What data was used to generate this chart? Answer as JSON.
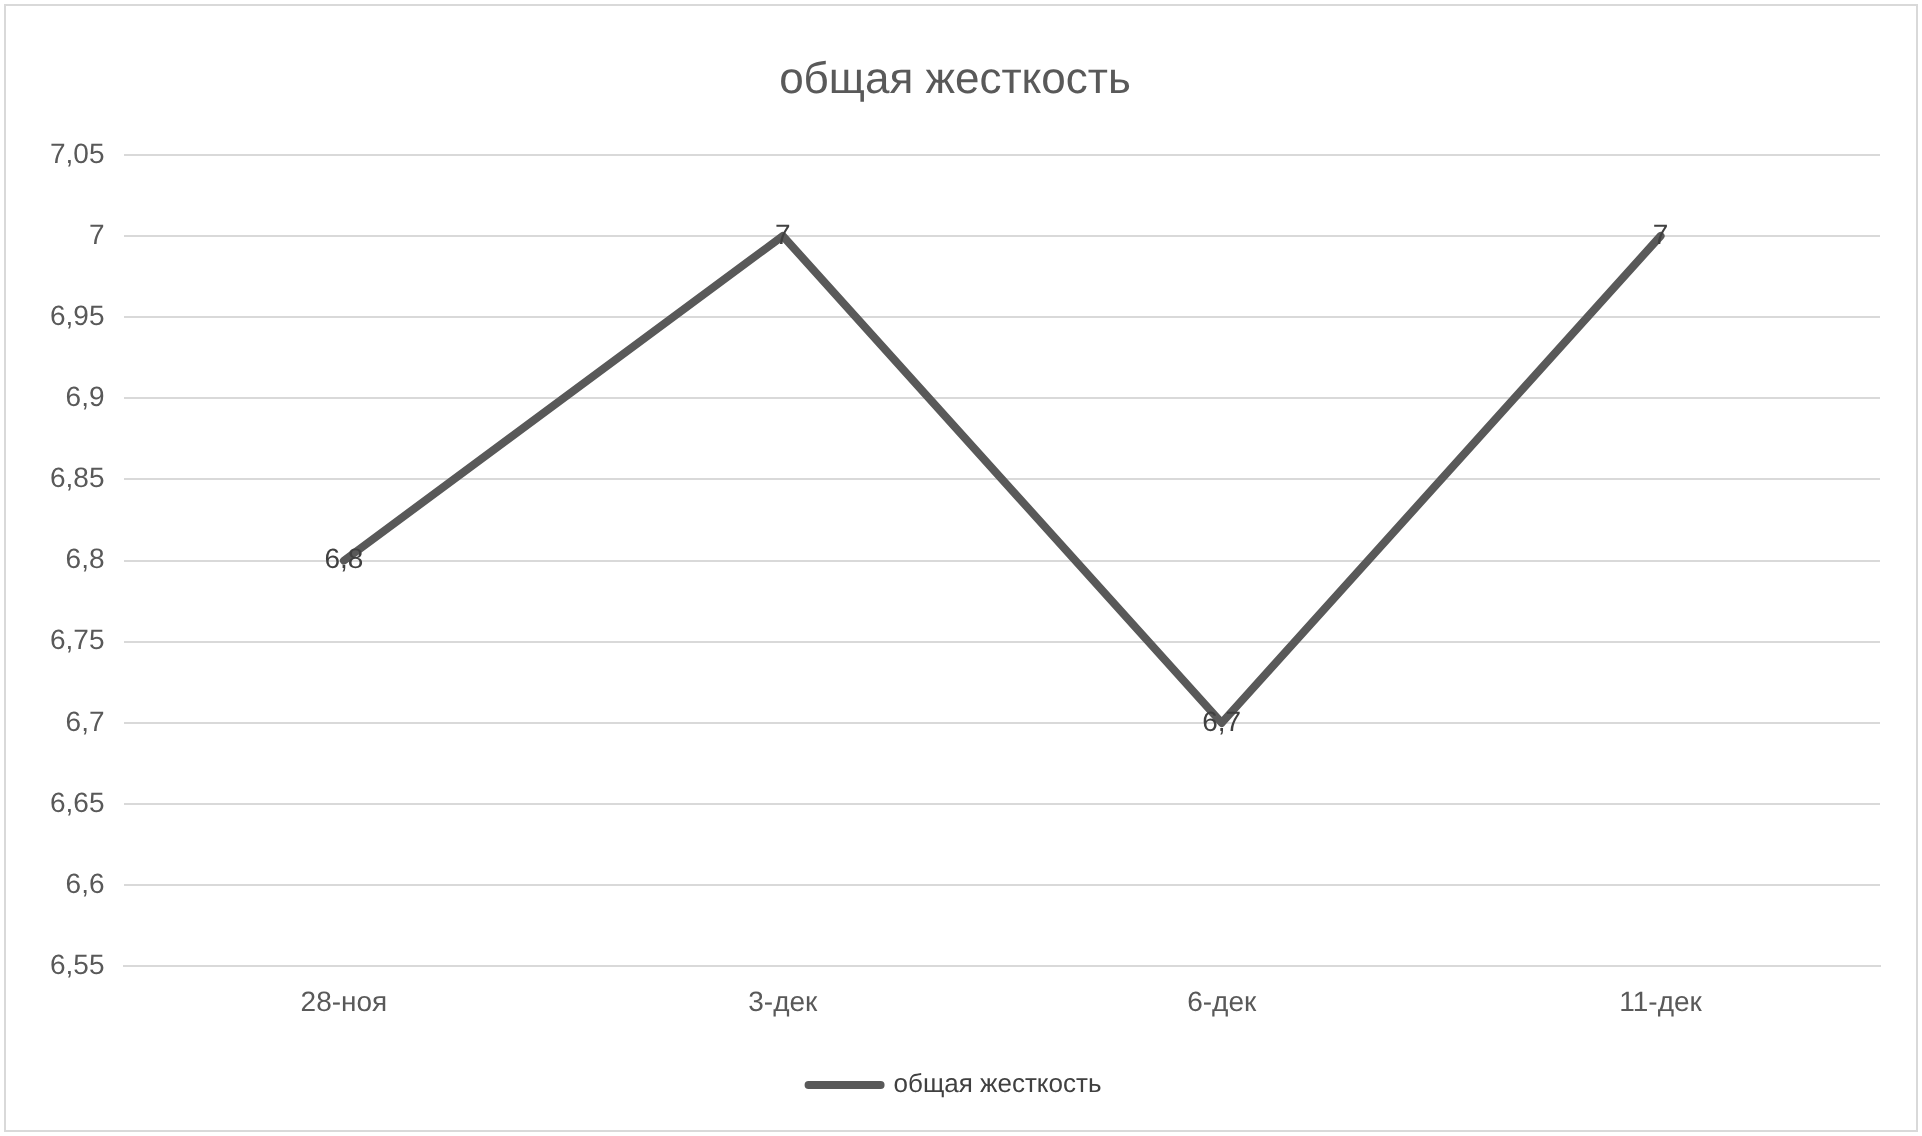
{
  "chart_data": {
    "type": "line",
    "title": "общая жесткость",
    "categories": [
      "28-ноя",
      "3-дек",
      "6-дек",
      "11-дек"
    ],
    "series": [
      {
        "name": "общая жесткость",
        "color": "#595959",
        "values": [
          6.8,
          7,
          6.7,
          7
        ],
        "value_labels": [
          "6,8",
          "7",
          "6,7",
          "7"
        ]
      }
    ],
    "ylim": [
      6.55,
      7.05
    ],
    "yticks": [
      {
        "value": 6.55,
        "label": "6,55"
      },
      {
        "value": 6.6,
        "label": "6,6"
      },
      {
        "value": 6.65,
        "label": "6,65"
      },
      {
        "value": 6.7,
        "label": "6,7"
      },
      {
        "value": 6.75,
        "label": "6,75"
      },
      {
        "value": 6.8,
        "label": "6,8"
      },
      {
        "value": 6.85,
        "label": "6,85"
      },
      {
        "value": 6.9,
        "label": "6,9"
      },
      {
        "value": 6.95,
        "label": "6,95"
      },
      {
        "value": 7,
        "label": "7"
      },
      {
        "value": 7.05,
        "label": "7,05"
      }
    ],
    "grid": "y",
    "legend": "bottom",
    "marker": "none",
    "line_style": "solid"
  }
}
